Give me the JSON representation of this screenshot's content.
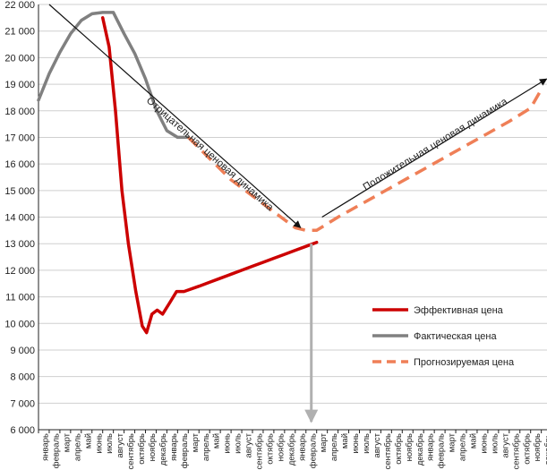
{
  "chart_data": {
    "type": "line",
    "title": "",
    "xlabel": "",
    "ylabel": "",
    "ylim": [
      6000,
      22000
    ],
    "y_ticks": [
      6000,
      7000,
      8000,
      9000,
      10000,
      11000,
      12000,
      13000,
      14000,
      15000,
      16000,
      17000,
      18000,
      19000,
      20000,
      21000,
      22000
    ],
    "y_tick_labels": [
      "6 000",
      "7 000",
      "8 000",
      "9 000",
      "10 000",
      "11 000",
      "12 000",
      "13 000",
      "14 000",
      "15 000",
      "16 000",
      "17 000",
      "18 000",
      "19 000",
      "20 000",
      "21 000",
      "22 000"
    ],
    "categories": [
      "январь",
      "февраль",
      "март",
      "апрель",
      "май",
      "июнь",
      "июль",
      "август",
      "сентябрь",
      "октябрь",
      "ноябрь",
      "декабрь",
      "январь",
      "февраль",
      "март",
      "апрель",
      "май",
      "июнь",
      "июль",
      "август",
      "сентябрь",
      "октябрь",
      "ноябрь",
      "декабрь",
      "январь",
      "февраль",
      "март",
      "апрель",
      "май",
      "июнь",
      "июль",
      "август",
      "сентябрь",
      "октябрь",
      "ноябрь",
      "декабрь",
      "январь",
      "февраль",
      "март",
      "апрель",
      "май",
      "июнь",
      "июль",
      "август",
      "сентябрь",
      "октябрь",
      "ноябрь",
      "декабрь"
    ],
    "series": [
      {
        "name": "Фактическая цена",
        "color": "#808080",
        "style": "solid",
        "points": [
          [
            0,
            18400
          ],
          [
            1,
            19400
          ],
          [
            2,
            20200
          ],
          [
            3,
            20900
          ],
          [
            4,
            21400
          ],
          [
            5,
            21650
          ],
          [
            6,
            21700
          ],
          [
            7,
            21700
          ],
          [
            8,
            20900
          ],
          [
            9,
            20150
          ],
          [
            10,
            19200
          ],
          [
            11,
            18050
          ],
          [
            12,
            17250
          ],
          [
            13,
            17000
          ],
          [
            14,
            17000
          ]
        ]
      },
      {
        "name": "Эффективная цена",
        "color": "#cc0000",
        "style": "solid",
        "points": [
          [
            6,
            21500
          ],
          [
            6.6,
            20400
          ],
          [
            7.2,
            18000
          ],
          [
            7.8,
            15000
          ],
          [
            8.4,
            13000
          ],
          [
            9.1,
            11200
          ],
          [
            9.7,
            9900
          ],
          [
            10.1,
            9650
          ],
          [
            10.6,
            10350
          ],
          [
            11.1,
            10500
          ],
          [
            11.6,
            10350
          ],
          [
            12.3,
            10800
          ],
          [
            12.9,
            11200
          ],
          [
            13.6,
            11200
          ],
          [
            15,
            11400
          ],
          [
            16,
            11550
          ],
          [
            17,
            11700
          ],
          [
            18,
            11850
          ],
          [
            19,
            12000
          ],
          [
            20,
            12150
          ],
          [
            21,
            12300
          ],
          [
            22,
            12450
          ],
          [
            23,
            12600
          ],
          [
            24,
            12750
          ],
          [
            25,
            12900
          ],
          [
            26,
            13050
          ]
        ]
      },
      {
        "name": "Прогнозируемая цена",
        "color": "#ef7f57",
        "style": "dashed",
        "points": [
          [
            14,
            17000
          ],
          [
            16,
            16200
          ],
          [
            18,
            15400
          ],
          [
            20,
            14800
          ],
          [
            22,
            14200
          ],
          [
            24,
            13600
          ],
          [
            25,
            13500
          ],
          [
            26,
            13500
          ],
          [
            28,
            14000
          ],
          [
            30,
            14450
          ],
          [
            32,
            14900
          ],
          [
            34,
            15350
          ],
          [
            36,
            15800
          ],
          [
            38,
            16250
          ],
          [
            40,
            16700
          ],
          [
            42,
            17150
          ],
          [
            44,
            17600
          ],
          [
            46,
            18100
          ],
          [
            47,
            18800
          ]
        ]
      }
    ],
    "annotations": [
      {
        "text": "Отрицательная ценовая динамика",
        "from": [
          1,
          22000
        ],
        "to": [
          24.5,
          13600
        ]
      },
      {
        "text": "Положительная ценовая динамика",
        "from": [
          26.5,
          14000
        ],
        "to": [
          47.5,
          19200
        ]
      },
      {
        "text": "",
        "from": [
          25.5,
          13000
        ],
        "to": [
          25.5,
          6300
        ]
      }
    ],
    "legend": {
      "placement": "right",
      "items": [
        {
          "label": "Эффективная цена",
          "color": "#cc0000",
          "style": "solid"
        },
        {
          "label": "Фактическая цена",
          "color": "#808080",
          "style": "solid"
        },
        {
          "label": "Прогнозируемая цена",
          "color": "#ef7f57",
          "style": "dashed"
        }
      ]
    }
  }
}
